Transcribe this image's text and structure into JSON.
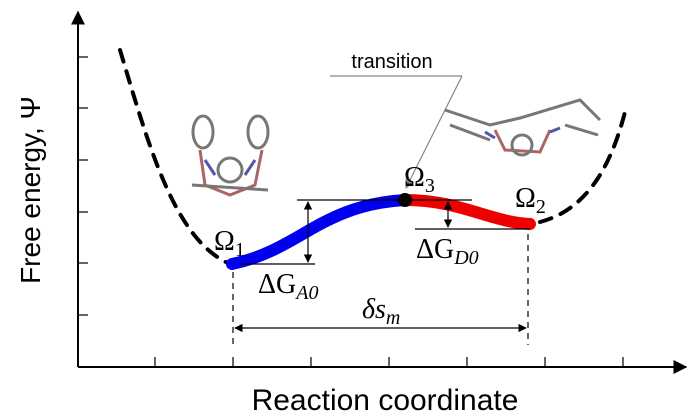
{
  "axes": {
    "y_label": "Free energy, Ψ",
    "x_label": "Reaction coordinate"
  },
  "annotations": {
    "transition": "transition",
    "state_1": {
      "symbol": "Ω",
      "subscript": "1"
    },
    "state_3": {
      "symbol": "Ω",
      "subscript": "3"
    },
    "state_2": {
      "symbol": "Ω",
      "subscript": "2"
    },
    "barrier_A": {
      "symbol": "ΔG",
      "subscript": "A0"
    },
    "barrier_D": {
      "symbol": "ΔG",
      "subscript": "D0"
    },
    "distance": {
      "symbol": "δs",
      "subscript": "m"
    }
  }
}
